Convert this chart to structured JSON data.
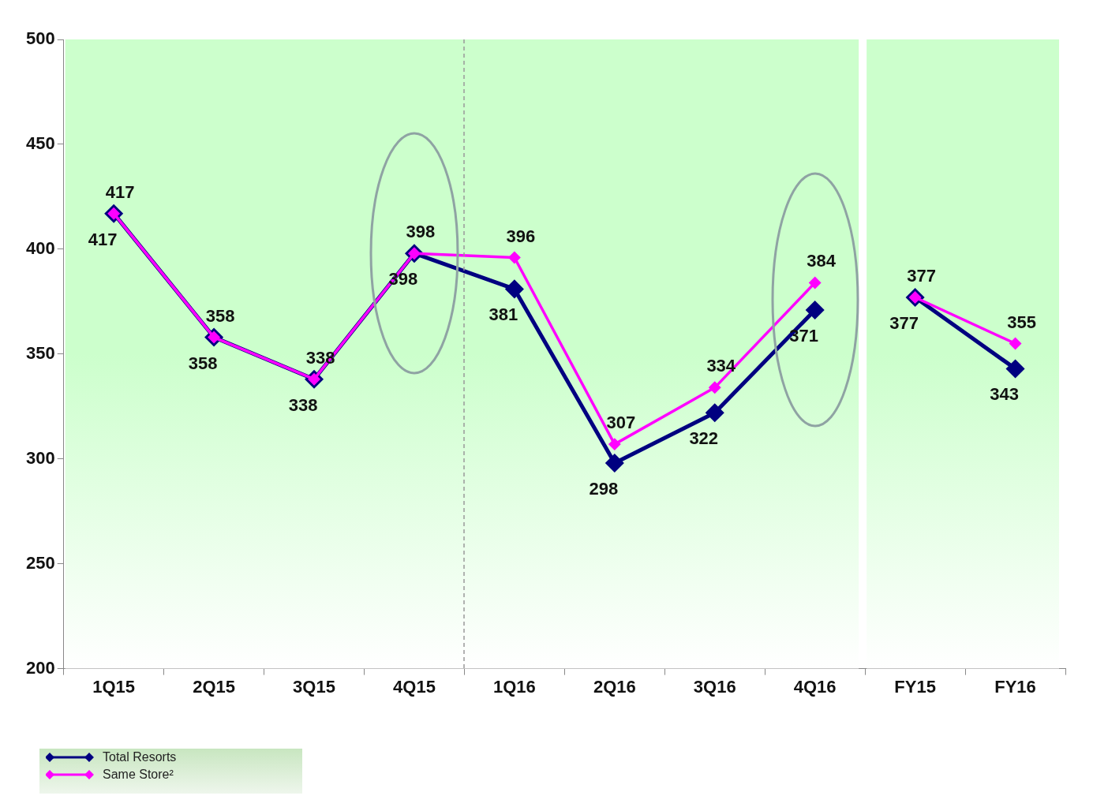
{
  "chart_data": {
    "type": "line",
    "categories": [
      "1Q15",
      "2Q15",
      "3Q15",
      "4Q15",
      "1Q16",
      "2Q16",
      "3Q16",
      "4Q16",
      "FY15",
      "FY16"
    ],
    "series": [
      {
        "name": "Total Resorts",
        "color": "#000080",
        "values": [
          417,
          358,
          338,
          398,
          381,
          298,
          322,
          371,
          null,
          null
        ]
      },
      {
        "name": "Same Store²",
        "color": "#ff00ff",
        "values": [
          417,
          358,
          338,
          398,
          396,
          307,
          334,
          384,
          null,
          null
        ]
      },
      {
        "color": "#000080",
        "values": [
          null,
          null,
          null,
          null,
          null,
          null,
          null,
          null,
          377,
          343
        ]
      },
      {
        "color": "#ff00ff",
        "values": [
          null,
          null,
          null,
          null,
          null,
          null,
          null,
          null,
          377,
          355
        ]
      }
    ],
    "ylim": [
      200,
      500
    ],
    "yticks": [
      200,
      250,
      300,
      350,
      400,
      450,
      500
    ],
    "grid": false,
    "legend": "bottom left",
    "marker": "diamond",
    "line_style": "solid",
    "data_labels": true,
    "bands": [
      {
        "axis": "x",
        "from": "1Q15",
        "to": "4Q16",
        "color": "#ccffcc"
      },
      {
        "axis": "x",
        "from": "FY15",
        "to": "FY16",
        "color": "#ccffcc"
      }
    ]
  }
}
